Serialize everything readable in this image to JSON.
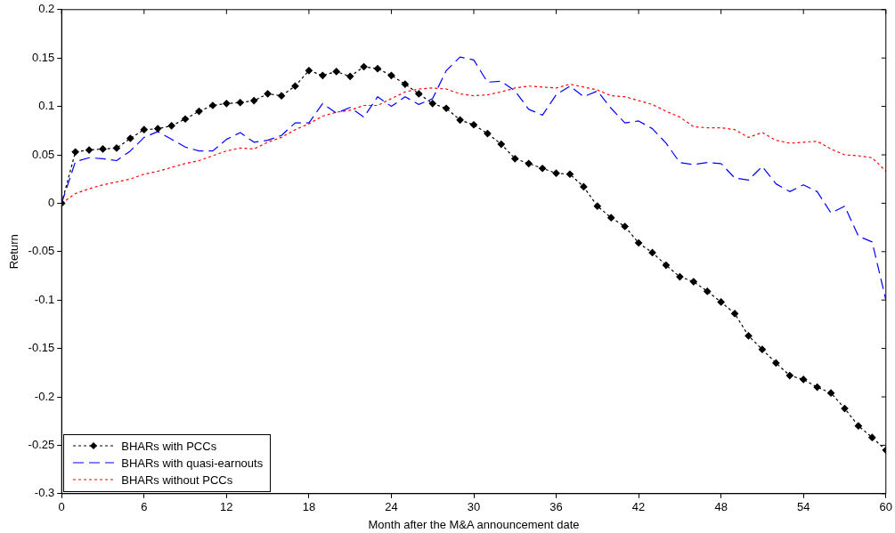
{
  "chart_data": {
    "type": "line",
    "xlabel": "Month after the M&A announcement date",
    "ylabel": "Return",
    "x": [
      0,
      1,
      2,
      3,
      4,
      5,
      6,
      7,
      8,
      9,
      10,
      11,
      12,
      13,
      14,
      15,
      16,
      17,
      18,
      19,
      20,
      21,
      22,
      23,
      24,
      25,
      26,
      27,
      28,
      29,
      30,
      31,
      32,
      33,
      34,
      35,
      36,
      37,
      38,
      39,
      40,
      41,
      42,
      43,
      44,
      45,
      46,
      47,
      48,
      49,
      50,
      51,
      52,
      53,
      54,
      55,
      56,
      57,
      58,
      59,
      60
    ],
    "xlim": [
      0,
      60
    ],
    "xticks": [
      0,
      6,
      12,
      18,
      24,
      30,
      36,
      42,
      48,
      54,
      60
    ],
    "ylim": [
      -0.3,
      0.2
    ],
    "yticks": [
      -0.3,
      -0.25,
      -0.2,
      -0.15,
      -0.1,
      -0.05,
      0,
      0.05,
      0.1,
      0.15,
      0.2
    ],
    "grid": false,
    "legend": "bottom left",
    "series": [
      {
        "name": "BHARs with PCCs",
        "color": "#000000",
        "marker": "diamond",
        "line_style": "dotted",
        "values": [
          0,
          0.053,
          0.055,
          0.056,
          0.057,
          0.067,
          0.076,
          0.077,
          0.08,
          0.087,
          0.095,
          0.101,
          0.103,
          0.104,
          0.106,
          0.113,
          0.111,
          0.121,
          0.137,
          0.132,
          0.136,
          0.131,
          0.141,
          0.139,
          0.132,
          0.123,
          0.113,
          0.103,
          0.098,
          0.086,
          0.081,
          0.072,
          0.061,
          0.046,
          0.041,
          0.036,
          0.031,
          0.03,
          0.017,
          -0.003,
          -0.015,
          -0.024,
          -0.041,
          -0.051,
          -0.064,
          -0.076,
          -0.081,
          -0.091,
          -0.102,
          -0.114,
          -0.137,
          -0.151,
          -0.165,
          -0.178,
          -0.182,
          -0.19,
          -0.196,
          -0.212,
          -0.23,
          -0.242,
          -0.255
        ]
      },
      {
        "name": "BHARs with quasi-earnouts",
        "color": "#0000ff",
        "marker": "none",
        "line_style": "dashed",
        "values": [
          0,
          0.043,
          0.047,
          0.046,
          0.044,
          0.054,
          0.068,
          0.074,
          0.066,
          0.058,
          0.054,
          0.054,
          0.066,
          0.073,
          0.063,
          0.065,
          0.07,
          0.083,
          0.083,
          0.103,
          0.093,
          0.099,
          0.089,
          0.11,
          0.1,
          0.11,
          0.102,
          0.108,
          0.137,
          0.151,
          0.148,
          0.125,
          0.126,
          0.116,
          0.097,
          0.091,
          0.112,
          0.121,
          0.11,
          0.116,
          0.098,
          0.083,
          0.085,
          0.077,
          0.062,
          0.042,
          0.04,
          0.042,
          0.041,
          0.026,
          0.024,
          0.038,
          0.02,
          0.012,
          0.019,
          0.012,
          -0.01,
          -0.003,
          -0.034,
          -0.04,
          -0.1
        ]
      },
      {
        "name": "BHARs without PCCs",
        "color": "#ff0000",
        "marker": "none",
        "line_style": "dotted",
        "values": [
          0,
          0.01,
          0.015,
          0.019,
          0.022,
          0.025,
          0.03,
          0.033,
          0.037,
          0.041,
          0.044,
          0.049,
          0.054,
          0.057,
          0.056,
          0.063,
          0.068,
          0.076,
          0.082,
          0.09,
          0.094,
          0.096,
          0.101,
          0.101,
          0.108,
          0.115,
          0.118,
          0.119,
          0.118,
          0.113,
          0.111,
          0.112,
          0.115,
          0.119,
          0.121,
          0.12,
          0.119,
          0.123,
          0.12,
          0.117,
          0.111,
          0.11,
          0.106,
          0.102,
          0.095,
          0.089,
          0.079,
          0.078,
          0.078,
          0.076,
          0.068,
          0.073,
          0.065,
          0.062,
          0.063,
          0.064,
          0.056,
          0.05,
          0.049,
          0.047,
          0.033
        ]
      }
    ]
  }
}
